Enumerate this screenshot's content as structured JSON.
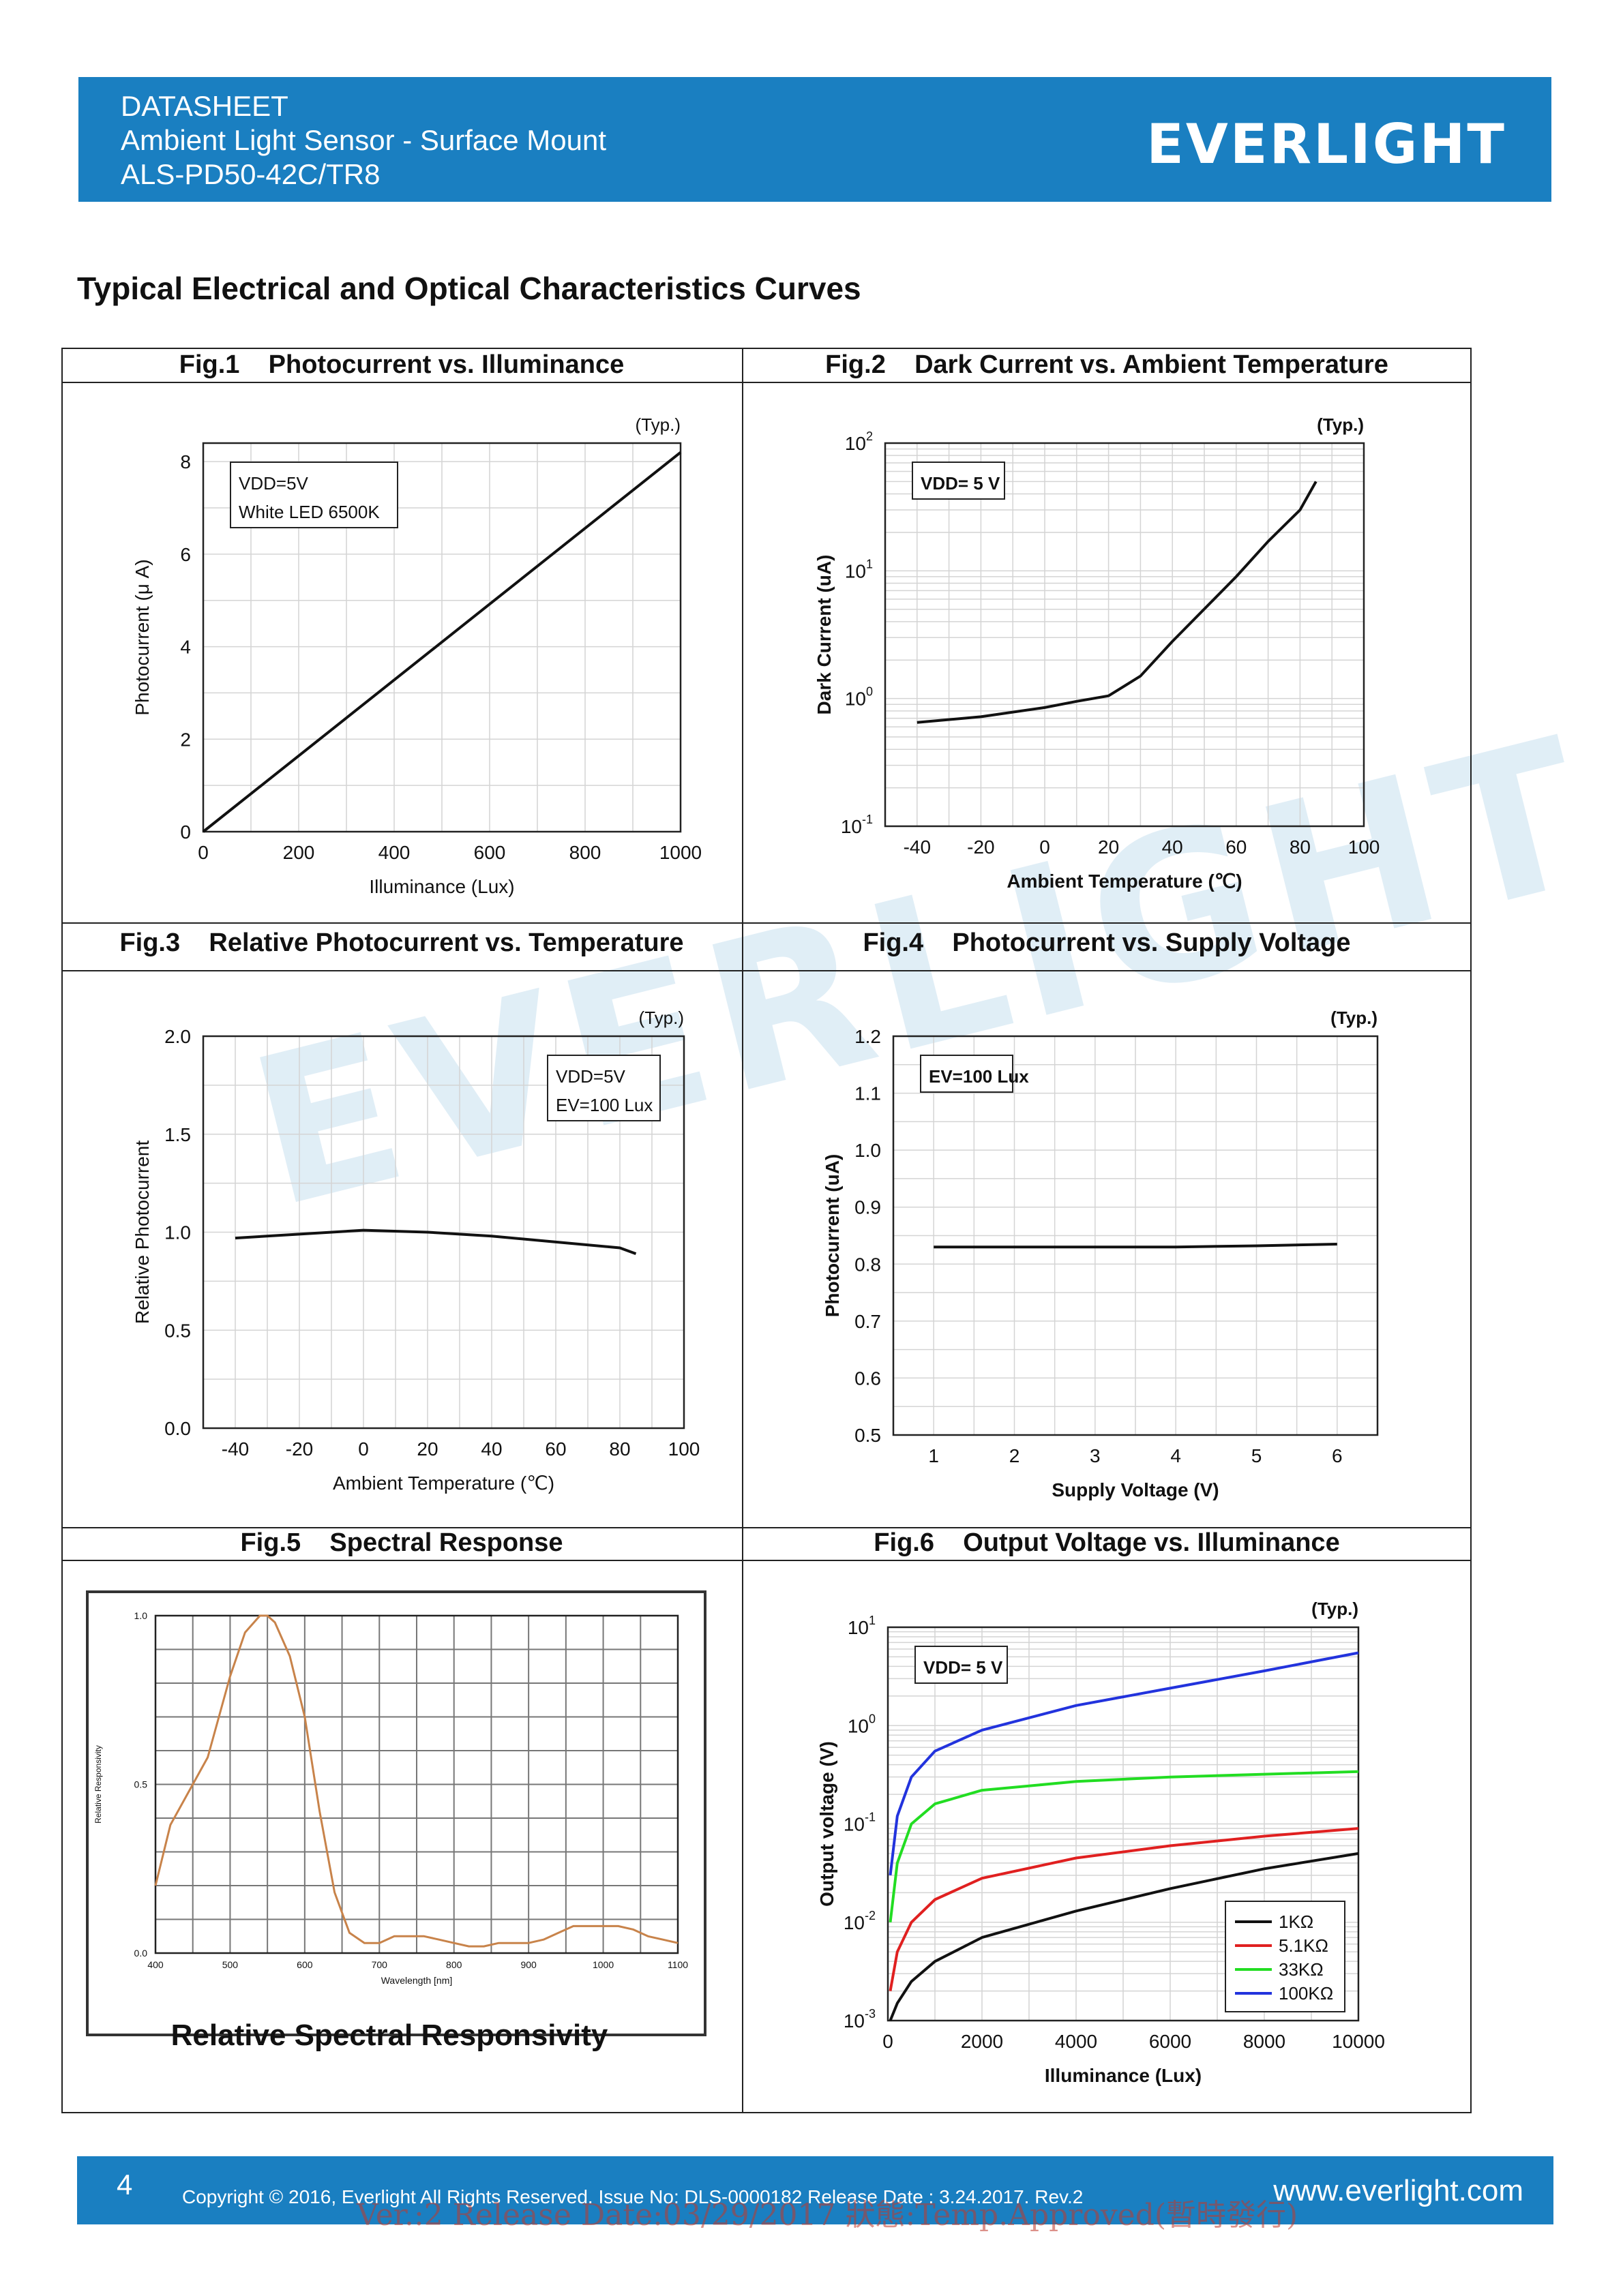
{
  "header": {
    "line1": "DATASHEET",
    "line2": "Ambient Light Sensor - Surface Mount",
    "line3": "ALS-PD50-42C/TR8",
    "logo": "EVERLIGHT"
  },
  "section_title": "Typical Electrical and Optical Characteristics Curves",
  "watermark": "EVERLIGHT",
  "chart_data": [
    {
      "type": "line",
      "fig_label": "Fig.1",
      "title": "Photocurrent vs. Illuminance",
      "typ": "(Typ.)",
      "xlabel": "Illuminance (Lux)",
      "ylabel": "Photocurrent (μ A)",
      "xlim": [
        0,
        1000
      ],
      "ylim": [
        0,
        8.4
      ],
      "xticks": [
        "0",
        "200",
        "400",
        "600",
        "800",
        "1000"
      ],
      "yticks": [
        "0",
        "2",
        "4",
        "6",
        "8"
      ],
      "annotation": [
        "VDD=5V",
        "White LED 6500K"
      ],
      "series": [
        {
          "x": [
            0,
            1000
          ],
          "y": [
            0,
            8.2
          ]
        }
      ]
    },
    {
      "type": "line",
      "fig_label": "Fig.2",
      "title": "Dark Current vs. Ambient Temperature",
      "typ": "(Typ.)",
      "xlabel": "Ambient Temperature (℃)",
      "ylabel": "Dark Current (uA)",
      "yscale": "log",
      "xlim": [
        -50,
        100
      ],
      "ylim": [
        0.1,
        100
      ],
      "xticks": [
        "-40",
        "-20",
        "0",
        "20",
        "40",
        "60",
        "80",
        "100"
      ],
      "yticks": [
        "10-1",
        "100",
        "101",
        "102"
      ],
      "annotation": [
        "VDD= 5 V"
      ],
      "series": [
        {
          "x": [
            -40,
            -20,
            0,
            10,
            20,
            30,
            40,
            60,
            70,
            80,
            85
          ],
          "y": [
            0.65,
            0.72,
            0.85,
            0.95,
            1.05,
            1.5,
            2.8,
            9,
            17,
            30,
            50
          ]
        }
      ]
    },
    {
      "type": "line",
      "fig_label": "Fig.3",
      "title": "Relative Photocurrent vs. Temperature",
      "typ": "(Typ.)",
      "xlabel": "Ambient Temperature (℃)",
      "ylabel": "Relative Photocurrent",
      "xlim": [
        -50,
        100
      ],
      "ylim": [
        0,
        2.0
      ],
      "xticks": [
        "-40",
        "-20",
        "0",
        "20",
        "40",
        "60",
        "80",
        "100"
      ],
      "yticks": [
        "0.0",
        "0.5",
        "1.0",
        "1.5",
        "2.0"
      ],
      "annotation": [
        "VDD=5V",
        "EV=100 Lux"
      ],
      "series": [
        {
          "x": [
            -40,
            -20,
            0,
            20,
            40,
            60,
            80,
            85
          ],
          "y": [
            0.97,
            0.99,
            1.01,
            1.0,
            0.98,
            0.95,
            0.92,
            0.89
          ]
        }
      ]
    },
    {
      "type": "line",
      "fig_label": "Fig.4",
      "title": "Photocurrent vs. Supply Voltage",
      "typ": "(Typ.)",
      "xlabel": "Supply Voltage (V)",
      "ylabel": "Photocurrent (uA)",
      "xlim": [
        0.5,
        6.5
      ],
      "ylim": [
        0.5,
        1.2
      ],
      "xticks": [
        "1",
        "2",
        "3",
        "4",
        "5",
        "6"
      ],
      "yticks": [
        "0.5",
        "0.6",
        "0.7",
        "0.8",
        "0.9",
        "1.0",
        "1.1",
        "1.2"
      ],
      "annotation": [
        "EV=100 Lux"
      ],
      "series": [
        {
          "x": [
            1,
            2,
            3,
            4,
            5,
            6
          ],
          "y": [
            0.83,
            0.83,
            0.83,
            0.83,
            0.832,
            0.835
          ]
        }
      ]
    },
    {
      "type": "line",
      "fig_label": "Fig.5",
      "title": "Spectral Response",
      "subtitle": "Relative Spectral Responsivity",
      "xlabel": "Wavelength [nm]",
      "ylabel": "Relative Responsivity",
      "xlim": [
        400,
        1100
      ],
      "ylim": [
        0,
        1.0
      ],
      "xticks": [
        "400",
        "500",
        "600",
        "700",
        "800",
        "900",
        "1000",
        "1100"
      ],
      "yticks": [
        "0.0",
        "0.5",
        "1.0"
      ],
      "series": [
        {
          "x": [
            400,
            420,
            450,
            470,
            500,
            520,
            540,
            550,
            560,
            580,
            600,
            620,
            640,
            660,
            680,
            700,
            720,
            740,
            760,
            780,
            800,
            820,
            840,
            860,
            880,
            900,
            920,
            940,
            960,
            980,
            1000,
            1020,
            1040,
            1060,
            1080,
            1100
          ],
          "y": [
            0.2,
            0.38,
            0.5,
            0.58,
            0.82,
            0.95,
            1.0,
            1.0,
            0.98,
            0.88,
            0.7,
            0.42,
            0.18,
            0.06,
            0.03,
            0.03,
            0.05,
            0.05,
            0.05,
            0.04,
            0.03,
            0.02,
            0.02,
            0.03,
            0.03,
            0.03,
            0.04,
            0.06,
            0.08,
            0.08,
            0.08,
            0.08,
            0.07,
            0.05,
            0.04,
            0.03
          ]
        }
      ]
    },
    {
      "type": "line",
      "fig_label": "Fig.6",
      "title": "Output Voltage vs. Illuminance",
      "typ": "(Typ.)",
      "xlabel": "Illuminance (Lux)",
      "ylabel": "Output voltage (V)",
      "yscale": "log",
      "xlim": [
        0,
        10000
      ],
      "ylim": [
        0.001,
        10
      ],
      "xticks": [
        "0",
        "2000",
        "4000",
        "6000",
        "8000",
        "10000"
      ],
      "yticks": [
        "10-3",
        "10-2",
        "10-1",
        "100",
        "101"
      ],
      "annotation": [
        "VDD= 5 V"
      ],
      "legend": "bottom-right",
      "series": [
        {
          "name": "1KΩ",
          "color": "#111111",
          "x": [
            50,
            200,
            500,
            1000,
            2000,
            4000,
            6000,
            8000,
            10000
          ],
          "y": [
            0.001,
            0.0015,
            0.0025,
            0.004,
            0.007,
            0.013,
            0.022,
            0.035,
            0.05
          ]
        },
        {
          "name": "5.1KΩ",
          "color": "#e02020",
          "x": [
            50,
            200,
            500,
            1000,
            2000,
            4000,
            6000,
            8000,
            10000
          ],
          "y": [
            0.002,
            0.005,
            0.01,
            0.017,
            0.028,
            0.045,
            0.06,
            0.075,
            0.09
          ]
        },
        {
          "name": "33KΩ",
          "color": "#22dd22",
          "x": [
            50,
            200,
            500,
            1000,
            2000,
            4000,
            6000,
            8000,
            10000
          ],
          "y": [
            0.01,
            0.04,
            0.1,
            0.16,
            0.22,
            0.27,
            0.3,
            0.32,
            0.34
          ]
        },
        {
          "name": "100KΩ",
          "color": "#2233dd",
          "x": [
            50,
            200,
            500,
            1000,
            2000,
            4000,
            6000,
            8000,
            10000
          ],
          "y": [
            0.03,
            0.12,
            0.3,
            0.55,
            0.9,
            1.6,
            2.4,
            3.6,
            5.5
          ]
        }
      ]
    }
  ],
  "footer": {
    "page": "4",
    "copyright": "Copyright © 2016, Everlight All Rights Reserved. Issue No: DLS-0000182   Release Date : 3.24.2017.   Rev.2",
    "url": "www.everlight.com",
    "stamp": "Ver.:2     Release Date:03/29/2017     狀態:Temp.Approved(暫時發行)"
  }
}
